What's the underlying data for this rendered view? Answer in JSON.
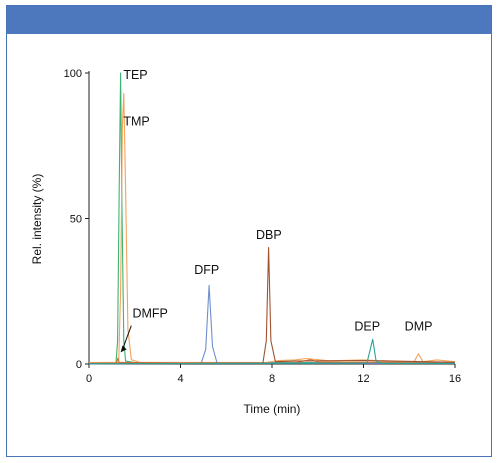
{
  "chart_data": {
    "type": "line",
    "title": "",
    "xlabel": "Time (min)",
    "ylabel": "Rel. intensity (%)",
    "xlim": [
      0,
      16
    ],
    "ylim": [
      0,
      100
    ],
    "x_ticks": [
      0,
      4,
      8,
      12,
      16
    ],
    "y_ticks": [
      0,
      50,
      100
    ],
    "grid": false,
    "legend": "none",
    "series": [
      {
        "color": "#3cb371",
        "points": [
          [
            0,
            0.4
          ],
          [
            1.18,
            0.5
          ],
          [
            1.25,
            8
          ],
          [
            1.32,
            60
          ],
          [
            1.38,
            100
          ],
          [
            1.44,
            55
          ],
          [
            1.52,
            8
          ],
          [
            1.6,
            1
          ],
          [
            2,
            0.5
          ],
          [
            16,
            0.4
          ]
        ]
      },
      {
        "color": "#f3a35c",
        "points": [
          [
            0,
            0.5
          ],
          [
            1.3,
            0.6
          ],
          [
            1.38,
            25
          ],
          [
            1.46,
            82
          ],
          [
            1.52,
            93
          ],
          [
            1.6,
            60
          ],
          [
            1.7,
            12
          ],
          [
            1.85,
            1.5
          ],
          [
            2.2,
            0.6
          ],
          [
            7.7,
            0.5
          ],
          [
            8.3,
            1.2
          ],
          [
            9,
            1.4
          ],
          [
            9.5,
            1.9
          ],
          [
            10.5,
            1.1
          ],
          [
            12,
            1.4
          ],
          [
            14.2,
            0.6
          ],
          [
            14.4,
            3.5
          ],
          [
            14.6,
            0.8
          ],
          [
            15.2,
            1.4
          ],
          [
            16,
            0.8
          ]
        ]
      },
      {
        "color": "#d8722c",
        "points": [
          [
            0,
            0.2
          ],
          [
            1.2,
            0.2
          ],
          [
            1.26,
            2
          ],
          [
            1.32,
            0.6
          ],
          [
            4,
            0.3
          ],
          [
            9,
            0.4
          ],
          [
            9.7,
            1.5
          ],
          [
            10,
            0.7
          ],
          [
            16,
            0.5
          ]
        ]
      },
      {
        "color": "#6f8ed0",
        "points": [
          [
            0,
            0.1
          ],
          [
            4.9,
            0.2
          ],
          [
            5.1,
            5
          ],
          [
            5.25,
            27
          ],
          [
            5.4,
            6
          ],
          [
            5.6,
            0.3
          ],
          [
            16,
            0.2
          ]
        ]
      },
      {
        "color": "#a0522d",
        "points": [
          [
            0,
            0.2
          ],
          [
            7.6,
            0.3
          ],
          [
            7.75,
            8
          ],
          [
            7.85,
            40
          ],
          [
            7.95,
            8
          ],
          [
            8.15,
            0.8
          ],
          [
            9,
            1
          ],
          [
            12,
            1.2
          ],
          [
            16,
            0.6
          ]
        ]
      },
      {
        "color": "#2aa198",
        "points": [
          [
            0,
            0.1
          ],
          [
            12.15,
            0.3
          ],
          [
            12.4,
            8.5
          ],
          [
            12.55,
            1
          ],
          [
            12.8,
            0.2
          ],
          [
            16,
            0.2
          ]
        ]
      }
    ],
    "annotations": [
      {
        "text": "TEP",
        "x": 1.5,
        "y": 98
      },
      {
        "text": "TMP",
        "x": 1.5,
        "y": 82
      },
      {
        "text": "DMFP",
        "x": 1.9,
        "y": 16
      },
      {
        "text": "DFP",
        "x": 4.6,
        "y": 31
      },
      {
        "text": "DBP",
        "x": 7.3,
        "y": 43
      },
      {
        "text": "DEP",
        "x": 11.6,
        "y": 11.5
      },
      {
        "text": "DMP",
        "x": 13.8,
        "y": 11.5
      }
    ]
  }
}
